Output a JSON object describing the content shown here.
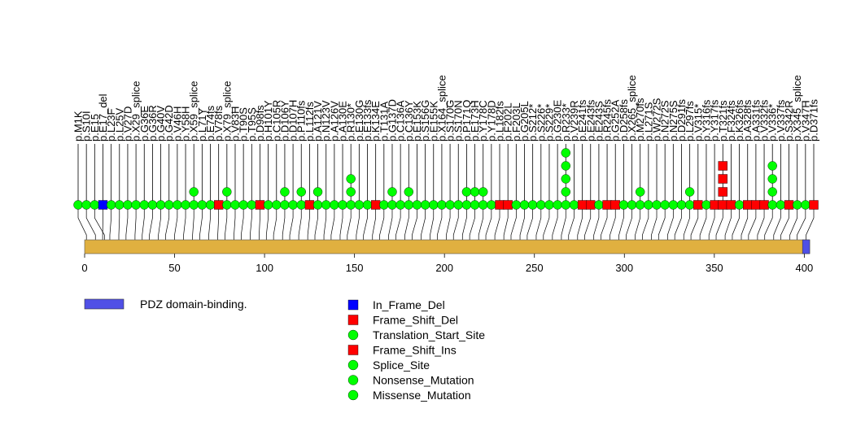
{
  "chart_data": {
    "type": "lollipop",
    "title": "",
    "xlabel": "",
    "ylabel": "",
    "xlim": [
      0,
      403
    ],
    "xticks": [
      0,
      50,
      100,
      150,
      200,
      250,
      300,
      350,
      400
    ],
    "protein_length": 403,
    "domains": [
      {
        "name": "PDZ domain-binding.",
        "start": 399,
        "end": 403,
        "color": "#5050e6"
      }
    ],
    "mutations": [
      {
        "label": "p.M1K",
        "pos": 1,
        "type": "Missense_Mutation",
        "count": 1
      },
      {
        "label": "p.S10I",
        "pos": 6,
        "type": "Missense_Mutation",
        "count": 1
      },
      {
        "label": "p.E15",
        "pos": 11,
        "type": "Missense_Mutation",
        "count": 1
      },
      {
        "label": "p.E17_del",
        "pos": 10,
        "type": "In_Frame_Del",
        "count": 1
      },
      {
        "label": "p.L23F",
        "pos": 14,
        "type": "Missense_Mutation",
        "count": 1
      },
      {
        "label": "p.L25V",
        "pos": 19,
        "type": "Missense_Mutation",
        "count": 1
      },
      {
        "label": "p.V27D",
        "pos": 23,
        "type": "Missense_Mutation",
        "count": 1
      },
      {
        "label": "p.X29_splice",
        "pos": 28,
        "type": "Missense_Mutation",
        "count": 1
      },
      {
        "label": "p.G36E",
        "pos": 32,
        "type": "Missense_Mutation",
        "count": 1
      },
      {
        "label": "p.G36R",
        "pos": 36,
        "type": "Missense_Mutation",
        "count": 1
      },
      {
        "label": "p.G40V",
        "pos": 41,
        "type": "Missense_Mutation",
        "count": 1
      },
      {
        "label": "p.G42D",
        "pos": 45,
        "type": "Missense_Mutation",
        "count": 1
      },
      {
        "label": "p.V46H",
        "pos": 50,
        "type": "Missense_Mutation",
        "count": 1
      },
      {
        "label": "p.Y58H",
        "pos": 55,
        "type": "Missense_Mutation",
        "count": 1
      },
      {
        "label": "p.X59_splice",
        "pos": 60,
        "type": "Missense_Mutation",
        "count": 2
      },
      {
        "label": "p.L71Y",
        "pos": 64,
        "type": "Missense_Mutation",
        "count": 1
      },
      {
        "label": "p.E74fs",
        "pos": 69,
        "type": "Missense_Mutation",
        "count": 1
      },
      {
        "label": "p.V78fs",
        "pos": 74,
        "type": "Frame_Shift_Del",
        "count": 1
      },
      {
        "label": "p.X79_splice",
        "pos": 78,
        "type": "Missense_Mutation",
        "count": 2
      },
      {
        "label": "p.V83H",
        "pos": 83,
        "type": "Missense_Mutation",
        "count": 1
      },
      {
        "label": "p.T90S",
        "pos": 87,
        "type": "Missense_Mutation",
        "count": 1
      },
      {
        "label": "p.T95S",
        "pos": 92,
        "type": "Missense_Mutation",
        "count": 1
      },
      {
        "label": "p.D98fs",
        "pos": 97,
        "type": "Frame_Shift_Del",
        "count": 1
      },
      {
        "label": "p.H101Y",
        "pos": 101,
        "type": "Missense_Mutation",
        "count": 1
      },
      {
        "label": "p.C105R",
        "pos": 105,
        "type": "Missense_Mutation",
        "count": 1
      },
      {
        "label": "p.D106Y",
        "pos": 110,
        "type": "Missense_Mutation",
        "count": 2
      },
      {
        "label": "p.D107H",
        "pos": 114,
        "type": "Missense_Mutation",
        "count": 1
      },
      {
        "label": "p.P110fs",
        "pos": 119,
        "type": "Missense_Mutation",
        "count": 2
      },
      {
        "label": "p.L112fs",
        "pos": 124,
        "type": "Frame_Shift_Del",
        "count": 1
      },
      {
        "label": "p.A121V",
        "pos": 128,
        "type": "Missense_Mutation",
        "count": 2
      },
      {
        "label": "p.N123V",
        "pos": 133,
        "type": "Missense_Mutation",
        "count": 1
      },
      {
        "label": "p.A126V",
        "pos": 137,
        "type": "Missense_Mutation",
        "count": 1
      },
      {
        "label": "p.A130E",
        "pos": 142,
        "type": "Missense_Mutation",
        "count": 1
      },
      {
        "label": "p.R130*",
        "pos": 146,
        "type": "Missense_Mutation",
        "count": 3
      },
      {
        "label": "p.E130G",
        "pos": 151,
        "type": "Missense_Mutation",
        "count": 1
      },
      {
        "label": "p.E133fs",
        "pos": 155,
        "type": "Missense_Mutation",
        "count": 1
      },
      {
        "label": "p.K134E",
        "pos": 160,
        "type": "Frame_Shift_Del",
        "count": 1
      },
      {
        "label": "p.T131A",
        "pos": 164,
        "type": "Missense_Mutation",
        "count": 1
      },
      {
        "label": "p.G137D",
        "pos": 169,
        "type": "Missense_Mutation",
        "count": 2
      },
      {
        "label": "p.C136A",
        "pos": 173,
        "type": "Missense_Mutation",
        "count": 1
      },
      {
        "label": "p.C136Y",
        "pos": 178,
        "type": "Missense_Mutation",
        "count": 2
      },
      {
        "label": "p.E153K",
        "pos": 182,
        "type": "Missense_Mutation",
        "count": 1
      },
      {
        "label": "p.S156G",
        "pos": 187,
        "type": "Missense_Mutation",
        "count": 1
      },
      {
        "label": "p.E155K",
        "pos": 192,
        "type": "Missense_Mutation",
        "count": 1
      },
      {
        "label": "p.X164_splice",
        "pos": 196,
        "type": "Missense_Mutation",
        "count": 1
      },
      {
        "label": "p.S170G",
        "pos": 201,
        "type": "Missense_Mutation",
        "count": 1
      },
      {
        "label": "p.S170N",
        "pos": 205,
        "type": "Missense_Mutation",
        "count": 1
      },
      {
        "label": "p.P171Q",
        "pos": 210,
        "type": "Missense_Mutation",
        "count": 2
      },
      {
        "label": "p.E173H",
        "pos": 214,
        "type": "Missense_Mutation",
        "count": 2
      },
      {
        "label": "p.Y178C",
        "pos": 219,
        "type": "Missense_Mutation",
        "count": 2
      },
      {
        "label": "p.Y178D",
        "pos": 223,
        "type": "Missense_Mutation",
        "count": 1
      },
      {
        "label": "p.L182fs",
        "pos": 228,
        "type": "Frame_Shift_Del",
        "count": 1
      },
      {
        "label": "p.F202L",
        "pos": 233,
        "type": "Frame_Shift_Del",
        "count": 1
      },
      {
        "label": "p.F203L",
        "pos": 237,
        "type": "Missense_Mutation",
        "count": 1
      },
      {
        "label": "p.G205L",
        "pos": 242,
        "type": "Missense_Mutation",
        "count": 1
      },
      {
        "label": "p.S212*",
        "pos": 246,
        "type": "Missense_Mutation",
        "count": 1
      },
      {
        "label": "p.S226*",
        "pos": 251,
        "type": "Missense_Mutation",
        "count": 1
      },
      {
        "label": "p.S229*",
        "pos": 255,
        "type": "Missense_Mutation",
        "count": 1
      },
      {
        "label": "p.G230E",
        "pos": 260,
        "type": "Missense_Mutation",
        "count": 1
      },
      {
        "label": "p.R233*",
        "pos": 265,
        "type": "Missense_Mutation",
        "count": 5
      },
      {
        "label": "p.V239R",
        "pos": 269,
        "type": "Missense_Mutation",
        "count": 1
      },
      {
        "label": "p.E241fs",
        "pos": 274,
        "type": "Frame_Shift_Del",
        "count": 1
      },
      {
        "label": "p.E243fs",
        "pos": 278,
        "type": "Frame_Shift_Del",
        "count": 1
      },
      {
        "label": "p.E243S",
        "pos": 283,
        "type": "Missense_Mutation",
        "count": 1
      },
      {
        "label": "p.R245fs",
        "pos": 287,
        "type": "Frame_Shift_Del",
        "count": 1
      },
      {
        "label": "p.G252A",
        "pos": 292,
        "type": "Frame_Shift_Del",
        "count": 1
      },
      {
        "label": "p.D258fs",
        "pos": 297,
        "type": "Missense_Mutation",
        "count": 1
      },
      {
        "label": "p.X265_splice",
        "pos": 301,
        "type": "Missense_Mutation",
        "count": 1
      },
      {
        "label": "p.M270fs",
        "pos": 306,
        "type": "Missense_Mutation",
        "count": 2
      },
      {
        "label": "p.L271S",
        "pos": 310,
        "type": "Missense_Mutation",
        "count": 1
      },
      {
        "label": "p.W272S",
        "pos": 315,
        "type": "Missense_Mutation",
        "count": 1
      },
      {
        "label": "p.N272S",
        "pos": 319,
        "type": "Missense_Mutation",
        "count": 1
      },
      {
        "label": "p.N275S",
        "pos": 324,
        "type": "Missense_Mutation",
        "count": 1
      },
      {
        "label": "p.D291fs",
        "pos": 328,
        "type": "Missense_Mutation",
        "count": 1
      },
      {
        "label": "p.L297fs",
        "pos": 333,
        "type": "Missense_Mutation",
        "count": 2
      },
      {
        "label": "p.V315*",
        "pos": 337,
        "type": "Frame_Shift_Del",
        "count": 1
      },
      {
        "label": "p.Y316fs",
        "pos": 342,
        "type": "Missense_Mutation",
        "count": 1
      },
      {
        "label": "p.Y317fs",
        "pos": 347,
        "type": "Frame_Shift_Del",
        "count": 1
      },
      {
        "label": "p.T321fs",
        "pos": 351,
        "type": "Frame_Shift_Del",
        "count": 4
      },
      {
        "label": "p.F324fs",
        "pos": 356,
        "type": "Frame_Shift_Del",
        "count": 1
      },
      {
        "label": "p.K326fs",
        "pos": 360,
        "type": "Missense_Mutation",
        "count": 1
      },
      {
        "label": "p.A328fs",
        "pos": 365,
        "type": "Frame_Shift_Del",
        "count": 1
      },
      {
        "label": "p.A331fs",
        "pos": 369,
        "type": "Frame_Shift_Del",
        "count": 1
      },
      {
        "label": "p.V332fs",
        "pos": 374,
        "type": "Frame_Shift_Del",
        "count": 1
      },
      {
        "label": "p.V336*",
        "pos": 378,
        "type": "Missense_Mutation",
        "count": 4
      },
      {
        "label": "p.V337fs",
        "pos": 383,
        "type": "Missense_Mutation",
        "count": 1
      },
      {
        "label": "p.S342R",
        "pos": 387,
        "type": "Frame_Shift_Del",
        "count": 1
      },
      {
        "label": "p.X345_splice",
        "pos": 392,
        "type": "Missense_Mutation",
        "count": 1
      },
      {
        "label": "p.V347H",
        "pos": 396,
        "type": "Missense_Mutation",
        "count": 1
      },
      {
        "label": "p.D371fs",
        "pos": 401,
        "type": "Frame_Shift_Del",
        "count": 1
      }
    ],
    "legend": {
      "domain_entries": [
        {
          "label": "PDZ domain-binding.",
          "color": "#5050e6"
        }
      ],
      "mutation_entries": [
        {
          "label": "In_Frame_Del",
          "shape": "square",
          "color": "#0000ff"
        },
        {
          "label": "Frame_Shift_Del",
          "shape": "square",
          "color": "#ff0000"
        },
        {
          "label": "Translation_Start_Site",
          "shape": "circle",
          "color": "#00ff00"
        },
        {
          "label": "Frame_Shift_Ins",
          "shape": "square",
          "color": "#ff0000"
        },
        {
          "label": "Splice_Site",
          "shape": "circle",
          "color": "#00ff00"
        },
        {
          "label": "Nonsense_Mutation",
          "shape": "circle",
          "color": "#00ff00"
        },
        {
          "label": "Missense_Mutation",
          "shape": "circle",
          "color": "#00ff00"
        }
      ]
    },
    "colors": {
      "protein_bar": "#e0b040",
      "circle": "#00ff00",
      "square_red": "#ff0000",
      "square_blue": "#0000ff"
    }
  }
}
